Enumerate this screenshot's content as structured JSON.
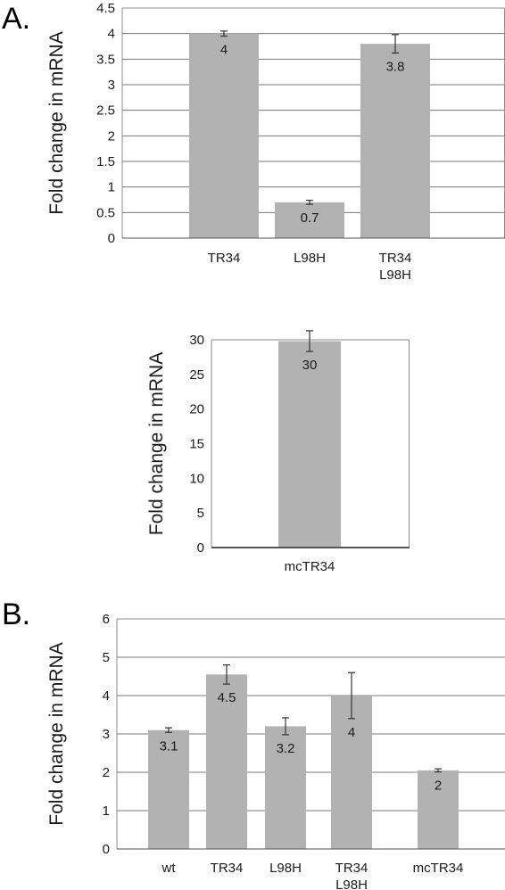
{
  "panels": {
    "a": "A.",
    "b": "B."
  },
  "chart_data": [
    {
      "type": "bar",
      "panel": "A.",
      "ylabel": "Fold change in mRNA",
      "ylim": [
        0,
        4.5
      ],
      "yticks": [
        "0",
        "0.5",
        "1",
        "1.5",
        "2",
        "2.5",
        "3",
        "3.5",
        "4",
        "4.5"
      ],
      "grid": true,
      "categories": [
        {
          "lines": [
            "TR34"
          ],
          "value": 4.0,
          "error": 0.05,
          "label": "4"
        },
        {
          "lines": [
            "L98H"
          ],
          "value": 0.7,
          "error": 0.04,
          "label": "0.7"
        },
        {
          "lines": [
            "TR34",
            "L98H"
          ],
          "value": 3.8,
          "error": 0.18,
          "label": "3.8"
        }
      ]
    },
    {
      "type": "bar",
      "ylabel": "Fold change in mRNA",
      "ylim": [
        0,
        30
      ],
      "yticks": [
        "0",
        "5",
        "10",
        "15",
        "20",
        "25",
        "30"
      ],
      "grid": false,
      "categories": [
        {
          "lines": [
            "mcTR34"
          ],
          "value": 29.8,
          "error": 1.5,
          "label": "30"
        }
      ]
    },
    {
      "type": "bar",
      "panel": "B.",
      "ylabel": "Fold change in mRNA",
      "ylim": [
        0,
        6
      ],
      "yticks": [
        "0",
        "1",
        "2",
        "3",
        "4",
        "5",
        "6"
      ],
      "grid": true,
      "categories": [
        {
          "lines": [
            "wt"
          ],
          "value": 3.1,
          "error": 0.06,
          "label": "3.1"
        },
        {
          "lines": [
            "TR34"
          ],
          "value": 4.55,
          "error": 0.25,
          "label": "4.5"
        },
        {
          "lines": [
            "L98H"
          ],
          "value": 3.2,
          "error": 0.22,
          "label": "3.2"
        },
        {
          "lines": [
            "TR34",
            "L98H"
          ],
          "value": 4.0,
          "error": 0.6,
          "label": "4"
        },
        {
          "lines": [
            "mcTR34"
          ],
          "value": 2.05,
          "error": 0.04,
          "label": "2"
        }
      ]
    }
  ],
  "colors": {
    "bar": "#b2b2b2",
    "grid": "#7a7a7a",
    "axis": "#555555",
    "frame": "#8c8c8c",
    "text": "#1a1a1a"
  }
}
